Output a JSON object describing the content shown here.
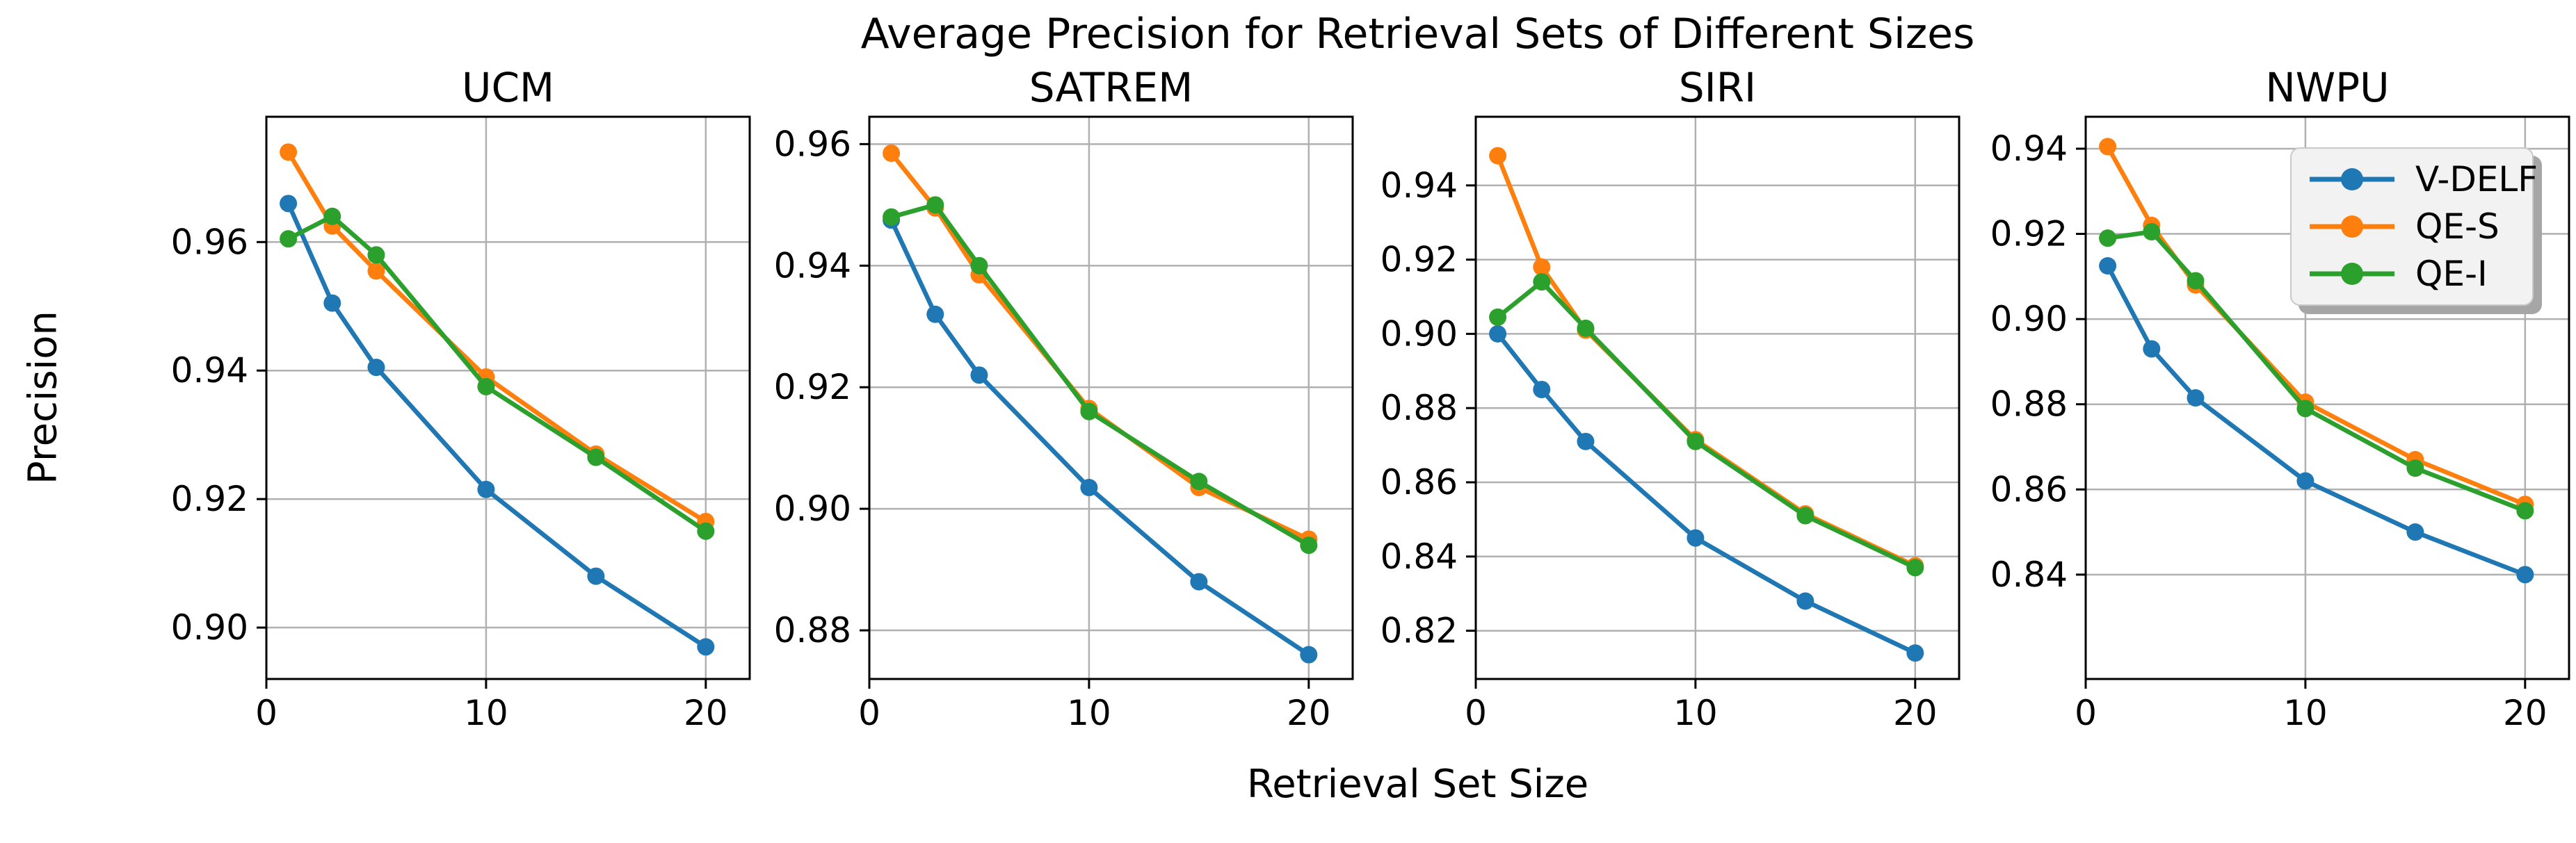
{
  "figure": {
    "title": "Average Precision for Retrieval Sets of Different Sizes",
    "xlabel": "Retrieval Set Size",
    "ylabel": "Precision",
    "background_color": "#ffffff",
    "grid_color": "#b0b0b0",
    "spine_color": "#000000",
    "legend": {
      "position": "upper right of NWPU subplot",
      "face_color": "#f2f2f2",
      "shadow": true,
      "entries": [
        {
          "label": "V-DELF",
          "color": "#1f77b4"
        },
        {
          "label": "QE-S",
          "color": "#ff7f0e"
        },
        {
          "label": "QE-I",
          "color": "#2ca02c"
        }
      ]
    }
  },
  "chart_data": [
    {
      "type": "line",
      "title": "UCM",
      "xlabel": "Retrieval Set Size",
      "ylabel": "Precision",
      "x": [
        1,
        3,
        5,
        10,
        15,
        20
      ],
      "xlim": [
        0,
        22
      ],
      "xticks": [
        0,
        10,
        20
      ],
      "ylim": [
        0.892,
        0.9795
      ],
      "yticks": [
        0.9,
        0.92,
        0.94,
        0.96
      ],
      "grid": true,
      "series": [
        {
          "name": "V-DELF",
          "color": "#1f77b4",
          "values": [
            0.966,
            0.9505,
            0.9405,
            0.9215,
            0.908,
            0.897
          ]
        },
        {
          "name": "QE-S",
          "color": "#ff7f0e",
          "values": [
            0.974,
            0.9625,
            0.9555,
            0.939,
            0.927,
            0.9165
          ]
        },
        {
          "name": "QE-I",
          "color": "#2ca02c",
          "values": [
            0.9605,
            0.964,
            0.958,
            0.9375,
            0.9265,
            0.915
          ]
        }
      ]
    },
    {
      "type": "line",
      "title": "SATREM",
      "xlabel": "Retrieval Set Size",
      "ylabel": "Precision",
      "x": [
        1,
        3,
        5,
        10,
        15,
        20
      ],
      "xlim": [
        0,
        22
      ],
      "xticks": [
        0,
        10,
        20
      ],
      "ylim": [
        0.872,
        0.9645
      ],
      "yticks": [
        0.88,
        0.9,
        0.92,
        0.94,
        0.96
      ],
      "grid": true,
      "series": [
        {
          "name": "V-DELF",
          "color": "#1f77b4",
          "values": [
            0.9475,
            0.932,
            0.922,
            0.9035,
            0.888,
            0.876
          ]
        },
        {
          "name": "QE-S",
          "color": "#ff7f0e",
          "values": [
            0.9585,
            0.9495,
            0.9385,
            0.9165,
            0.9035,
            0.895
          ]
        },
        {
          "name": "QE-I",
          "color": "#2ca02c",
          "values": [
            0.948,
            0.95,
            0.94,
            0.916,
            0.9045,
            0.894
          ]
        }
      ]
    },
    {
      "type": "line",
      "title": "SIRI",
      "xlabel": "Retrieval Set Size",
      "ylabel": "Precision",
      "x": [
        1,
        3,
        5,
        10,
        15,
        20
      ],
      "xlim": [
        0,
        22
      ],
      "xticks": [
        0,
        10,
        20
      ],
      "ylim": [
        0.807,
        0.9585
      ],
      "yticks": [
        0.82,
        0.84,
        0.86,
        0.88,
        0.9,
        0.92,
        0.94
      ],
      "grid": true,
      "series": [
        {
          "name": "V-DELF",
          "color": "#1f77b4",
          "values": [
            0.9,
            0.885,
            0.871,
            0.845,
            0.828,
            0.814
          ]
        },
        {
          "name": "QE-S",
          "color": "#ff7f0e",
          "values": [
            0.948,
            0.918,
            0.901,
            0.8715,
            0.8515,
            0.8375
          ]
        },
        {
          "name": "QE-I",
          "color": "#2ca02c",
          "values": [
            0.9045,
            0.914,
            0.9015,
            0.871,
            0.851,
            0.837
          ]
        }
      ]
    },
    {
      "type": "line",
      "title": "NWPU",
      "xlabel": "Retrieval Set Size",
      "ylabel": "Precision",
      "x": [
        1,
        3,
        5,
        10,
        15,
        20
      ],
      "xlim": [
        0,
        22
      ],
      "xticks": [
        0,
        10,
        20
      ],
      "ylim": [
        0.8155,
        0.9475
      ],
      "yticks": [
        0.84,
        0.86,
        0.88,
        0.9,
        0.92,
        0.94
      ],
      "grid": true,
      "series": [
        {
          "name": "V-DELF",
          "color": "#1f77b4",
          "values": [
            0.9125,
            0.893,
            0.8815,
            0.862,
            0.85,
            0.84
          ]
        },
        {
          "name": "QE-S",
          "color": "#ff7f0e",
          "values": [
            0.9405,
            0.922,
            0.908,
            0.8805,
            0.867,
            0.8565
          ]
        },
        {
          "name": "QE-I",
          "color": "#2ca02c",
          "values": [
            0.919,
            0.9205,
            0.909,
            0.879,
            0.865,
            0.855
          ]
        }
      ]
    }
  ]
}
